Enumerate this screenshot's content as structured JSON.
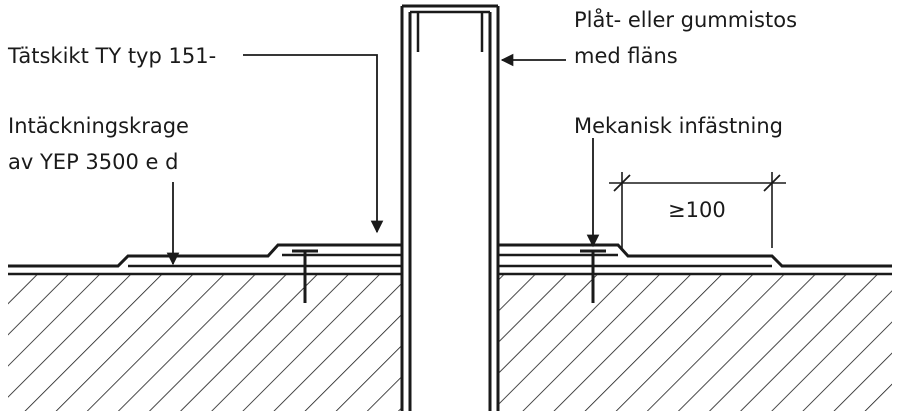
{
  "labels": {
    "membrane": "Tätskikt TY typ 151-",
    "collar_line1": "Intäckningskrage",
    "collar_line2": "av YEP 3500 e d",
    "boot_line1": "Plåt- eller gummistos",
    "boot_line2": "med fläns",
    "fastening": "Mekanisk infästning",
    "dimension": "≥100"
  },
  "colors": {
    "ink": "#1a1a1a",
    "background": "#ffffff"
  }
}
